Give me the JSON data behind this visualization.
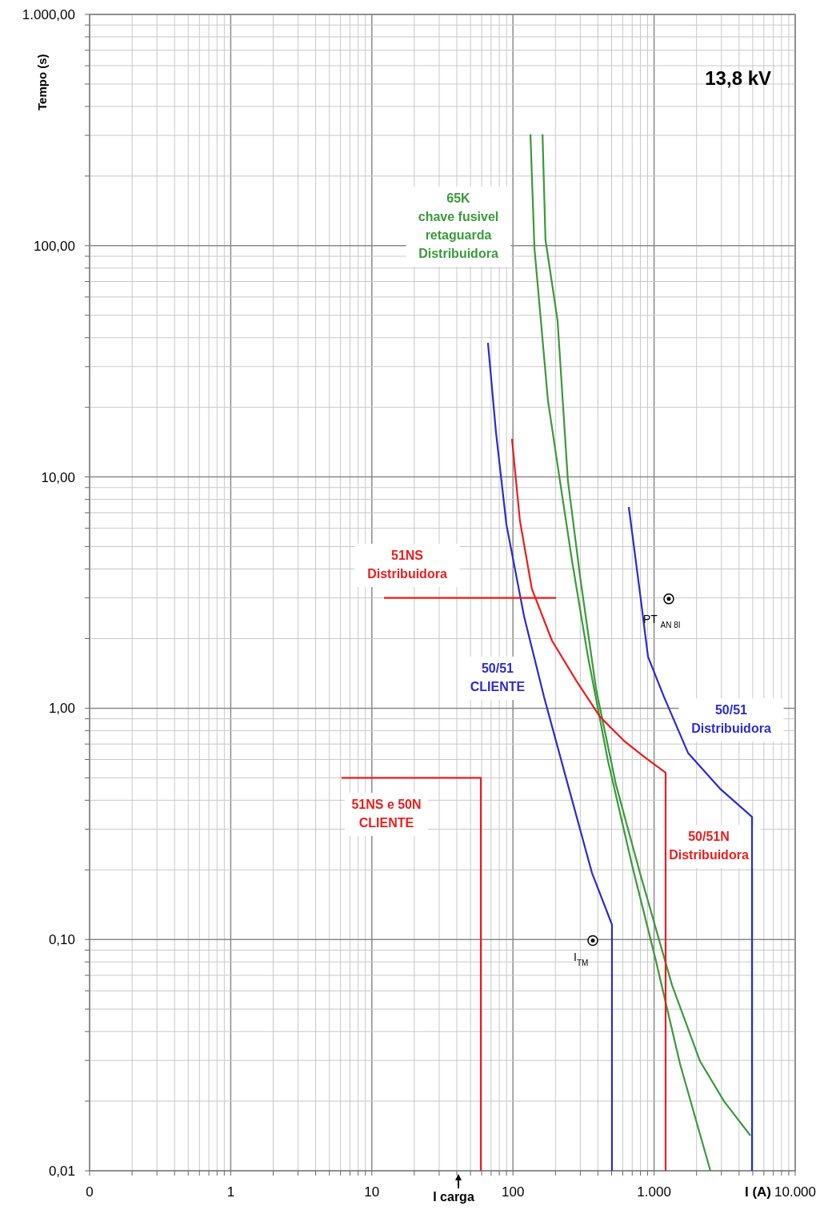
{
  "chart_data": {
    "type": "line",
    "ylabel": "Tempo (s)",
    "xlabel": "I (A)",
    "log": "xy",
    "grid": true,
    "xlim": [
      0.1,
      10000
    ],
    "ylim": [
      0.01,
      1000
    ],
    "xticks": [
      {
        "value": 0.1,
        "label": "0"
      },
      {
        "value": 0.2,
        "label": null
      },
      {
        "value": 0.3,
        "label": null
      },
      {
        "value": 0.4,
        "label": null
      },
      {
        "value": 0.5,
        "label": null
      },
      {
        "value": 0.6,
        "label": null
      },
      {
        "value": 0.7,
        "label": null
      },
      {
        "value": 0.8,
        "label": null
      },
      {
        "value": 0.9,
        "label": null
      },
      1,
      {
        "value": 2,
        "label": null
      },
      {
        "value": 3,
        "label": null
      },
      {
        "value": 4,
        "label": null
      },
      {
        "value": 5,
        "label": null
      },
      {
        "value": 6,
        "label": null
      },
      {
        "value": 7,
        "label": null
      },
      {
        "value": 8,
        "label": null
      },
      {
        "value": 9,
        "label": null
      },
      10,
      {
        "value": 20,
        "label": null
      },
      {
        "value": 30,
        "label": null
      },
      {
        "value": 40,
        "label": null
      },
      {
        "value": 50,
        "label": null
      },
      {
        "value": 60,
        "label": null
      },
      {
        "value": 70,
        "label": null
      },
      {
        "value": 80,
        "label": null
      },
      {
        "value": 90,
        "label": null
      },
      100,
      {
        "value": 200,
        "label": null
      },
      {
        "value": 300,
        "label": null
      },
      {
        "value": 400,
        "label": null
      },
      {
        "value": 500,
        "label": null
      },
      {
        "value": 600,
        "label": null
      },
      {
        "value": 700,
        "label": null
      },
      {
        "value": 800,
        "label": null
      },
      {
        "value": 900,
        "label": null
      },
      {
        "value": 1000,
        "label": "1.000"
      },
      {
        "value": 2000,
        "label": null
      },
      {
        "value": 3000,
        "label": null
      },
      {
        "value": 4000,
        "label": null
      },
      {
        "value": 5000,
        "label": null
      },
      {
        "value": 6000,
        "label": null
      },
      {
        "value": 7000,
        "label": null
      },
      {
        "value": 8000,
        "label": null
      },
      {
        "value": 9000,
        "label": null
      },
      {
        "value": 10000,
        "label": "10.000"
      }
    ],
    "yticks": [
      {
        "value": 0.01,
        "label": "0,01"
      },
      {
        "value": 0.02,
        "label": null
      },
      {
        "value": 0.03,
        "label": null
      },
      {
        "value": 0.04,
        "label": null
      },
      {
        "value": 0.05,
        "label": null
      },
      {
        "value": 0.06,
        "label": null
      },
      {
        "value": 0.07,
        "label": null
      },
      {
        "value": 0.08,
        "label": null
      },
      {
        "value": 0.09,
        "label": null
      },
      {
        "value": 0.1,
        "label": "0,10"
      },
      {
        "value": 0.2,
        "label": null
      },
      {
        "value": 0.3,
        "label": null
      },
      {
        "value": 0.4,
        "label": null
      },
      {
        "value": 0.5,
        "label": null
      },
      {
        "value": 0.6,
        "label": null
      },
      {
        "value": 0.7,
        "label": null
      },
      {
        "value": 0.8,
        "label": null
      },
      {
        "value": 0.9,
        "label": null
      },
      {
        "value": 1,
        "label": "1,00"
      },
      {
        "value": 2,
        "label": null
      },
      {
        "value": 3,
        "label": null
      },
      {
        "value": 4,
        "label": null
      },
      {
        "value": 5,
        "label": null
      },
      {
        "value": 6,
        "label": null
      },
      {
        "value": 7,
        "label": null
      },
      {
        "value": 8,
        "label": null
      },
      {
        "value": 9,
        "label": null
      },
      {
        "value": 10,
        "label": "10,00"
      },
      {
        "value": 20,
        "label": null
      },
      {
        "value": 30,
        "label": null
      },
      {
        "value": 40,
        "label": null
      },
      {
        "value": 50,
        "label": null
      },
      {
        "value": 60,
        "label": null
      },
      {
        "value": 70,
        "label": null
      },
      {
        "value": 80,
        "label": null
      },
      {
        "value": 90,
        "label": null
      },
      {
        "value": 100,
        "label": "100,00"
      },
      {
        "value": 200,
        "label": null
      },
      {
        "value": 300,
        "label": null
      },
      {
        "value": 400,
        "label": null
      },
      {
        "value": 500,
        "label": null
      },
      {
        "value": 600,
        "label": null
      },
      {
        "value": 700,
        "label": null
      },
      {
        "value": 800,
        "label": null
      },
      {
        "value": 900,
        "label": null
      },
      {
        "value": 1000,
        "label": "1.000,00"
      }
    ],
    "series": [
      {
        "name": "65K\nchave fusivel\nretaguarda\nDistribuidora",
        "color": "#3a9a3a",
        "x": [
          133,
          142,
          177,
          215,
          262,
          340,
          471,
          698,
          1030,
          1527,
          2506
        ],
        "values": [
          303,
          97.5,
          21.4,
          9.66,
          4.35,
          1.67,
          0.593,
          0.21,
          0.081,
          0.029,
          0.01
        ]
      },
      {
        "color": "#3a9a3a",
        "x": [
          162,
          170,
          207,
          245,
          299,
          388,
          537,
          794,
          1340,
          2115,
          3128,
          4815
        ],
        "values": [
          303,
          106,
          47.5,
          9.66,
          3.71,
          1.21,
          0.467,
          0.194,
          0.0635,
          0.0298,
          0.02,
          0.0142
        ]
      },
      {
        "name": "50/51\nCLIENTE",
        "color": "#2b2bd0",
        "x": [
          66.5,
          75.8,
          89.9,
          120,
          166,
          245,
          363,
          503,
          503
        ],
        "values": [
          38,
          15.6,
          6.22,
          2.49,
          1.12,
          0.467,
          0.194,
          0.116,
          0.01
        ]
      },
      {
        "name": "50/51\nDistribuidora",
        "color": "#2b2bd0",
        "x": [
          662,
          794,
          906,
          1175,
          1740,
          2932,
          4943,
          4943
        ],
        "values": [
          7.42,
          3.16,
          1.67,
          1.12,
          0.641,
          0.449,
          0.339,
          0.01
        ]
      },
      {
        "name": "50/51N\nDistribuidora",
        "color": "#ee1c1c",
        "x": [
          98.4,
          112,
          136,
          189,
          280,
          414,
          612,
          848,
          1207,
          1207
        ],
        "values": [
          14.6,
          6.48,
          3.29,
          1.96,
          1.32,
          0.918,
          0.723,
          0.617,
          0.526,
          0.01
        ]
      },
      {
        "name": "51NS\nDistribuidora",
        "color": "#ee1c1c",
        "x": [
          12.2,
          202
        ],
        "values": [
          3,
          3
        ]
      },
      {
        "name": "51NS e 50N\nCLIENTE",
        "color": "#ee1c1c",
        "x": [
          6.1,
          59.2,
          59.2
        ],
        "values": [
          0.5,
          0.5,
          0.01
        ]
      },
      {
        "type": "scatter",
        "marker": "circle",
        "color": "#000000",
        "x": [
          1271,
          368
        ],
        "values": [
          2.97,
          0.099
        ],
        "value_labels": [
          "PT $_{AN 8I}$",
          "I$_{TM}$"
        ]
      }
    ],
    "annotations": [
      "13,8 kV",
      "I carga"
    ]
  }
}
